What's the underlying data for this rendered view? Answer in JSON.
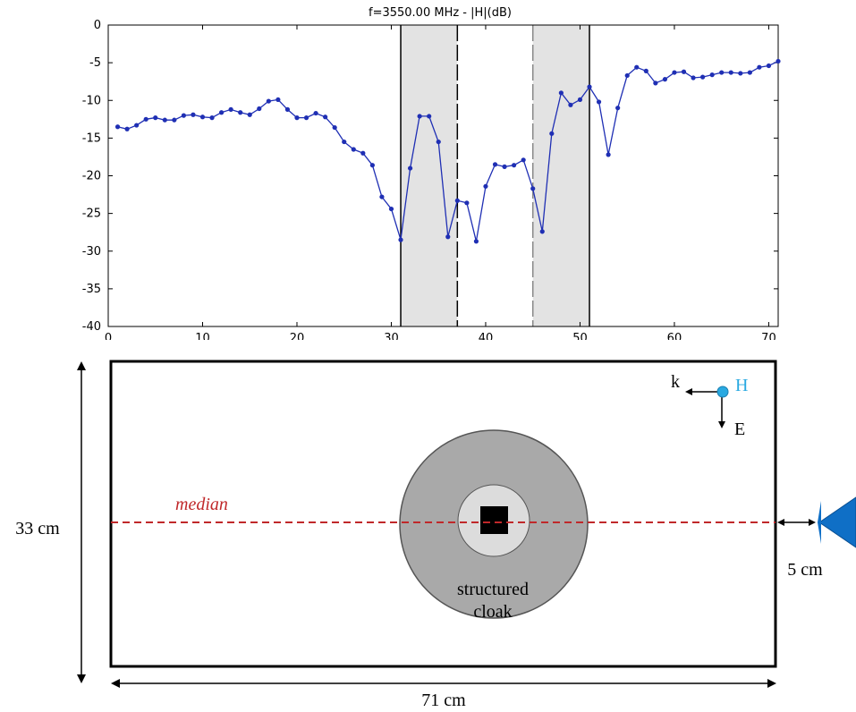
{
  "chart_data": {
    "type": "line",
    "title": "f=3550.00 MHz - |H|(dB)",
    "xlabel": "",
    "ylabel": "",
    "xlim": [
      0,
      71
    ],
    "ylim": [
      -40,
      0
    ],
    "xticks": [
      "0",
      "10",
      "20",
      "30",
      "40",
      "50",
      "60",
      "70"
    ],
    "yticks": [
      "0",
      "-5",
      "-10",
      "-15",
      "-20",
      "-25",
      "-30",
      "-35",
      "-40"
    ],
    "grid": false,
    "shaded_regions": [
      [
        31,
        37
      ],
      [
        45,
        51
      ]
    ],
    "series": [
      {
        "color": "#1f2fb4",
        "x": [
          1,
          2,
          3,
          4,
          5,
          6,
          7,
          8,
          9,
          10,
          11,
          12,
          13,
          14,
          15,
          16,
          17,
          18,
          19,
          20,
          21,
          22,
          23,
          24,
          25,
          26,
          27,
          28,
          29,
          30,
          31,
          32,
          33,
          34,
          35,
          36,
          37,
          38,
          39,
          40,
          41,
          42,
          43,
          44,
          45,
          46,
          47,
          48,
          49,
          50,
          51,
          52,
          53,
          54,
          55,
          56,
          57,
          58,
          59,
          60,
          61,
          62,
          63,
          64,
          65,
          66,
          67,
          68,
          69,
          70,
          71
        ],
        "y": [
          -13.5,
          -13.8,
          -13.3,
          -12.5,
          -12.3,
          -12.6,
          -12.6,
          -12,
          -11.9,
          -12.2,
          -12.3,
          -11.6,
          -11.2,
          -11.6,
          -11.9,
          -11.1,
          -10.1,
          -9.9,
          -11.2,
          -12.3,
          -12.3,
          -11.7,
          -12.2,
          -13.6,
          -15.5,
          -16.5,
          -17,
          -18.6,
          -22.8,
          -24.4,
          -28.5,
          -19,
          -12.1,
          -12.1,
          -15.5,
          -28.1,
          -23.3,
          -23.6,
          -28.7,
          -21.4,
          -18.5,
          -18.8,
          -18.6,
          -17.9,
          -21.7,
          -27.4,
          -14.4,
          -9,
          -10.6,
          -9.9,
          -8.2,
          -10.2,
          -17.2,
          -11,
          -6.7,
          -5.6,
          -6.1,
          -7.7,
          -7.2,
          -6.3,
          -6.2,
          -7,
          -6.9,
          -6.6,
          -6.3,
          -6.3,
          -6.4,
          -6.3,
          -5.6,
          -5.4,
          -4.8
        ]
      }
    ]
  },
  "diagram": {
    "median_label": "median",
    "cloak_label_line1": "structured",
    "cloak_label_line2": "cloak",
    "height_label": "33 cm",
    "width_label": "71 cm",
    "gap_label": "5 cm",
    "k_label": "k",
    "h_label": "H",
    "e_label": "E",
    "colors": {
      "median_line": "#c0282a",
      "cloak_outer": "#a9a9a9",
      "cloak_inner": "#dcdcdc",
      "h_dot": "#29a9e1",
      "source": "#0f6fc6"
    }
  }
}
